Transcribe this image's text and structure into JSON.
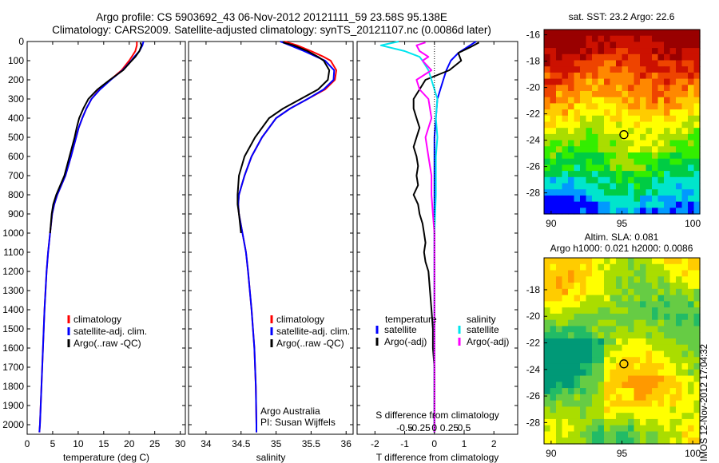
{
  "header": {
    "line1": "Argo profile: CS 5903692_43 06-Nov-2012 20121111_59 23.58S 95.138E",
    "line2": "Climatology: CARS2009. Satellite-adjusted climatology: synTS_20121107.nc (0.0086d later)"
  },
  "watermark": "IMOS 12-Nov-2012 17:04:32",
  "chart_data": [
    {
      "id": "temperature",
      "type": "line",
      "xlabel": "temperature (deg C)",
      "xlim": [
        0,
        31
      ],
      "ylim": [
        2050,
        0
      ],
      "xticks": [
        0,
        5,
        10,
        15,
        20,
        25,
        30
      ],
      "xtick_labels": [
        "0",
        "5",
        "10",
        "15",
        "20",
        "25",
        "30"
      ],
      "yticks": [
        0,
        100,
        200,
        300,
        400,
        500,
        600,
        700,
        800,
        900,
        1000,
        1100,
        1200,
        1300,
        1400,
        1500,
        1600,
        1700,
        1800,
        1900,
        2000
      ],
      "legend": [
        "climatology",
        "satellite-adj. clim.",
        "Argo(..raw -QC)"
      ],
      "series": [
        {
          "name": "climatology",
          "color": "#ff0000",
          "depth": [
            0,
            20,
            50,
            80,
            100,
            150,
            200,
            250,
            300,
            350,
            400,
            450,
            500,
            600,
            700,
            800,
            850,
            900,
            1000,
            1100,
            1200,
            1400,
            1600,
            1800,
            2000,
            2040
          ],
          "values": [
            21.5,
            21.5,
            21.2,
            20.5,
            20.0,
            18.5,
            16.3,
            14.2,
            12.6,
            11.6,
            10.8,
            10.1,
            9.6,
            8.6,
            7.5,
            5.9,
            5.3,
            4.9,
            4.5,
            4.1,
            3.8,
            3.4,
            3.1,
            2.8,
            2.5,
            2.4
          ]
        },
        {
          "name": "satellite-adj. clim.",
          "color": "#0000ff",
          "depth": [
            0,
            20,
            50,
            80,
            100,
            150,
            200,
            250,
            300,
            350,
            400,
            450,
            500,
            600,
            700,
            800,
            850,
            900,
            1000,
            1100,
            1200,
            1400,
            1600,
            1800,
            2000,
            2040
          ],
          "values": [
            22.8,
            22.6,
            22.0,
            21.0,
            20.4,
            18.7,
            16.4,
            14.3,
            12.6,
            11.6,
            10.8,
            10.1,
            9.6,
            8.6,
            7.5,
            5.9,
            5.3,
            4.9,
            4.5,
            4.1,
            3.8,
            3.4,
            3.1,
            2.8,
            2.5,
            2.4
          ]
        },
        {
          "name": "Argo(..raw -QC)",
          "color": "#000000",
          "depth": [
            5,
            20,
            50,
            80,
            100,
            150,
            200,
            250,
            300,
            350,
            400,
            450,
            500,
            600,
            700,
            800,
            850,
            900,
            1000
          ],
          "values": [
            22.2,
            22.4,
            22.0,
            21.2,
            20.5,
            18.8,
            16.2,
            13.8,
            12.0,
            11.0,
            10.2,
            9.7,
            9.3,
            8.3,
            7.3,
            5.7,
            5.1,
            4.8,
            4.5
          ]
        }
      ]
    },
    {
      "id": "salinity",
      "type": "line",
      "xlabel": "salinity",
      "xlim": [
        33.75,
        36.1
      ],
      "ylim": [
        2050,
        0
      ],
      "xticks": [
        34,
        34.5,
        35,
        35.5,
        36
      ],
      "xtick_labels": [
        "34",
        "34.5",
        "35",
        "35.5",
        "36"
      ],
      "legend": [
        "climatology",
        "satellite-adj. clim.",
        "Argo(..raw -QC)"
      ],
      "annotation": [
        "Argo Australia",
        "PI: Susan Wijffels"
      ],
      "series": [
        {
          "name": "climatology",
          "color": "#ff0000",
          "depth": [
            0,
            20,
            50,
            80,
            100,
            150,
            200,
            250,
            300,
            350,
            400,
            500,
            600,
            700,
            800,
            850,
            900,
            1000,
            1100,
            1200,
            1400,
            1600,
            1800,
            2000,
            2040
          ],
          "values": [
            35.12,
            35.3,
            35.5,
            35.68,
            35.78,
            35.86,
            35.84,
            35.7,
            35.45,
            35.2,
            35.0,
            34.8,
            34.65,
            34.55,
            34.47,
            34.46,
            34.47,
            34.52,
            34.57,
            34.6,
            34.65,
            34.69,
            34.71,
            34.72,
            34.72
          ]
        },
        {
          "name": "satellite-adj. clim.",
          "color": "#0000ff",
          "depth": [
            0,
            20,
            50,
            80,
            100,
            150,
            200,
            250,
            300,
            350,
            400,
            500,
            600,
            700,
            800,
            850,
            900,
            1000,
            1100,
            1200,
            1400,
            1600,
            1800,
            2000,
            2040
          ],
          "values": [
            35.06,
            35.2,
            35.4,
            35.58,
            35.7,
            35.83,
            35.82,
            35.68,
            35.45,
            35.2,
            35.0,
            34.8,
            34.65,
            34.55,
            34.47,
            34.46,
            34.47,
            34.52,
            34.57,
            34.6,
            34.65,
            34.69,
            34.71,
            34.72,
            34.72
          ]
        },
        {
          "name": "Argo(..raw -QC)",
          "color": "#000000",
          "depth": [
            5,
            20,
            50,
            80,
            100,
            150,
            200,
            250,
            300,
            350,
            400,
            500,
            600,
            700,
            800,
            850,
            900,
            1000
          ],
          "values": [
            35.1,
            35.25,
            35.45,
            35.6,
            35.68,
            35.76,
            35.74,
            35.6,
            35.35,
            35.1,
            34.9,
            34.7,
            34.55,
            34.47,
            34.45,
            34.45,
            34.47,
            34.5
          ]
        }
      ]
    },
    {
      "id": "differences",
      "type": "line",
      "xlabel": "T difference from climatology",
      "xlabel_top": "S difference from climatology",
      "xlim": [
        -2.6,
        2.8
      ],
      "ylim": [
        2050,
        0
      ],
      "xticks": [
        -2,
        -1,
        0,
        1,
        2
      ],
      "xtick_labels": [
        "-2",
        "-1",
        "0",
        "1",
        "2"
      ],
      "sticks": [
        -1,
        -0.5,
        0,
        0.5,
        1
      ],
      "stick_labels": [
        "-0.5",
        "-0.25",
        "0",
        "0.25",
        "0.5"
      ],
      "legend_left_title": "temperature",
      "legend_right_title": "salinity",
      "legend": [
        "satellite",
        "Argo(-adj)",
        "satellite",
        "Argo(-adj)"
      ],
      "series": [
        {
          "name": "temperature satellite",
          "color": "#0000ff",
          "depth": [
            0,
            30,
            60,
            100,
            150,
            200,
            250,
            300,
            400,
            500,
            600,
            800,
            1000,
            1500,
            2040
          ],
          "values": [
            1.4,
            1.1,
            0.8,
            0.55,
            0.4,
            0.3,
            0.2,
            0.1,
            0.05,
            0,
            0,
            0,
            0,
            0,
            0
          ]
        },
        {
          "name": "temperature Argo(-adj)",
          "color": "#000000",
          "depth": [
            5,
            30,
            60,
            100,
            150,
            200,
            250,
            300,
            350,
            400,
            450,
            500,
            550,
            600,
            650,
            700,
            750,
            800,
            850,
            900,
            950,
            1000,
            1050,
            1100,
            1150,
            1200,
            1300,
            1400,
            1500,
            1600,
            1700,
            1800,
            1900,
            2000,
            2040
          ],
          "values": [
            1.5,
            1.2,
            0.8,
            0.9,
            0.5,
            -0.3,
            -0.5,
            -0.7,
            -0.7,
            -0.6,
            -0.5,
            -0.6,
            -0.7,
            -0.6,
            -0.55,
            -0.6,
            -0.55,
            -0.7,
            -0.55,
            -0.5,
            -0.4,
            -0.35,
            -0.3,
            -0.35,
            -0.3,
            -0.2,
            -0.15,
            -0.1,
            -0.05,
            -0.05,
            0,
            0,
            0,
            0,
            0
          ]
        },
        {
          "name": "salinity satellite",
          "color": "#00e5ee",
          "depth": [
            0,
            20,
            50,
            80,
            100,
            150,
            200,
            250,
            300,
            400,
            500,
            600,
            800,
            1000,
            1500,
            2040
          ],
          "values": [
            -1.2,
            -1.8,
            -1.0,
            -0.5,
            -0.4,
            -0.2,
            -0.1,
            0,
            0.1,
            0.05,
            0.1,
            0.05,
            0.05,
            0,
            0,
            0
          ]
        },
        {
          "name": "salinity Argo(-adj)",
          "color": "#ff00ff",
          "depth": [
            5,
            20,
            50,
            80,
            100,
            150,
            200,
            250,
            300,
            400,
            500,
            600,
            700,
            800,
            900,
            1000,
            1200,
            1500,
            2040
          ],
          "values": [
            -0.3,
            -0.6,
            -0.5,
            -0.2,
            -0.4,
            -0.1,
            -0.6,
            -0.5,
            -0.2,
            -0.1,
            -0.3,
            -0.2,
            -0.1,
            -0.1,
            -0.05,
            0,
            0,
            0,
            0
          ]
        }
      ]
    },
    {
      "id": "sst-map",
      "type": "heatmap",
      "title": "sat. SST: 23.2 Argo: 22.6",
      "xlim": [
        89.5,
        100.5
      ],
      "ylim": [
        -29.6,
        -15.6
      ],
      "xticks": [
        90,
        95,
        100
      ],
      "yticks": [
        -16,
        -18,
        -20,
        -22,
        -24,
        -26,
        -28
      ],
      "marker": [
        95.138,
        -23.58
      ],
      "colors": [
        "#0000ff",
        "#0099ff",
        "#00e5cc",
        "#00cc44",
        "#33ee00",
        "#aadd00",
        "#ffff00",
        "#ffcc00",
        "#ff8800",
        "#ee4400",
        "#cc1100",
        "#990000"
      ]
    },
    {
      "id": "sla-map",
      "type": "heatmap",
      "title": "Altim. SLA: 0.081",
      "subtitle": "Argo h1000: 0.021 h2000: 0.0086",
      "xlim": [
        89.5,
        100.5
      ],
      "ylim": [
        -29.6,
        -15.6
      ],
      "xticks": [
        90,
        95,
        100
      ],
      "yticks": [
        -18,
        -20,
        -22,
        -24,
        -26,
        -28
      ],
      "marker": [
        95.138,
        -23.58
      ],
      "colors": [
        "#009977",
        "#22bb66",
        "#66cc44",
        "#aadd00",
        "#ffff00",
        "#ffcc00",
        "#ff9900"
      ]
    }
  ]
}
